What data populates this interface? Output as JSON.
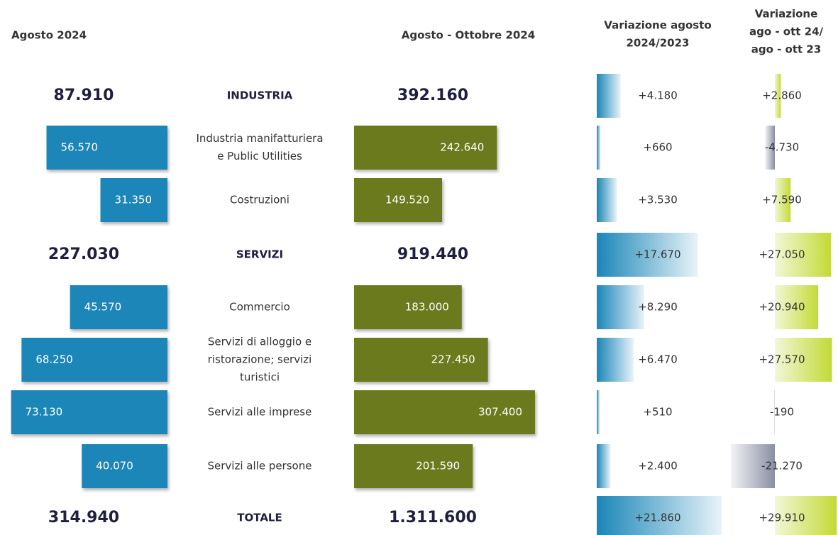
{
  "headers": [
    [
      "Agosto 2024"
    ],
    [
      "Agosto  - Ottobre 2024"
    ],
    [
      "Variazione agosto",
      "2024/2023"
    ],
    [
      "Variazione",
      "ago - ott 24/",
      "ago - ott 23"
    ]
  ],
  "rows": [
    {
      "label": [
        "INDUSTRIA"
      ],
      "sector": true,
      "aug": {
        "value": 87910,
        "label": "87.910"
      },
      "augoct": {
        "value": 392160,
        "label": "392.160"
      },
      "var_aug": {
        "value": 4180,
        "label": "+4.180"
      },
      "var_augoct": {
        "value": 2860,
        "label": "+2.860"
      }
    },
    {
      "label": [
        "Industria manifatturiera",
        "e Public Utilities"
      ],
      "sector": false,
      "aug": {
        "value": 56570,
        "label": "56.570"
      },
      "augoct": {
        "value": 242640,
        "label": "242.640"
      },
      "var_aug": {
        "value": 660,
        "label": "+660"
      },
      "var_augoct": {
        "value": -4730,
        "label": "-4.730"
      }
    },
    {
      "label": [
        "Costruzioni"
      ],
      "sector": false,
      "aug": {
        "value": 31350,
        "label": "31.350"
      },
      "augoct": {
        "value": 149520,
        "label": "149.520"
      },
      "var_aug": {
        "value": 3530,
        "label": "+3.530"
      },
      "var_augoct": {
        "value": 7590,
        "label": "+7.590"
      }
    },
    {
      "label": [
        "SERVIZI"
      ],
      "sector": true,
      "aug": {
        "value": 227030,
        "label": "227.030"
      },
      "augoct": {
        "value": 919440,
        "label": "919.440"
      },
      "var_aug": {
        "value": 17670,
        "label": "+17.670"
      },
      "var_augoct": {
        "value": 27050,
        "label": "+27.050"
      }
    },
    {
      "label": [
        "Commercio"
      ],
      "sector": false,
      "aug": {
        "value": 45570,
        "label": "45.570"
      },
      "augoct": {
        "value": 183000,
        "label": "183.000"
      },
      "var_aug": {
        "value": 8290,
        "label": "+8.290"
      },
      "var_augoct": {
        "value": 20940,
        "label": "+20.940"
      }
    },
    {
      "label": [
        "Servizi di alloggio e",
        "ristorazione; servizi",
        "turistici"
      ],
      "sector": false,
      "aug": {
        "value": 68250,
        "label": "68.250"
      },
      "augoct": {
        "value": 227450,
        "label": "227.450"
      },
      "var_aug": {
        "value": 6470,
        "label": "+6.470"
      },
      "var_augoct": {
        "value": 27570,
        "label": "+27.570"
      }
    },
    {
      "label": [
        "Servizi alle imprese"
      ],
      "sector": false,
      "aug": {
        "value": 73130,
        "label": "73.130"
      },
      "augoct": {
        "value": 307400,
        "label": "307.400"
      },
      "var_aug": {
        "value": 510,
        "label": "+510"
      },
      "var_augoct": {
        "value": -190,
        "label": "-190"
      }
    },
    {
      "label": [
        "Servizi alle persone"
      ],
      "sector": false,
      "aug": {
        "value": 40070,
        "label": "40.070"
      },
      "augoct": {
        "value": 201590,
        "label": "201.590"
      },
      "var_aug": {
        "value": 2400,
        "label": "+2.400"
      },
      "var_augoct": {
        "value": -21270,
        "label": "-21.270"
      }
    },
    {
      "label": [
        "TOTALE"
      ],
      "sector": true,
      "aug": {
        "value": 314940,
        "label": "314.940"
      },
      "augoct": {
        "value": 1311600,
        "label": "1.311.600"
      },
      "var_aug": {
        "value": 21860,
        "label": "+21.860"
      },
      "var_augoct": {
        "value": 29910,
        "label": "+29.910"
      }
    }
  ]
}
